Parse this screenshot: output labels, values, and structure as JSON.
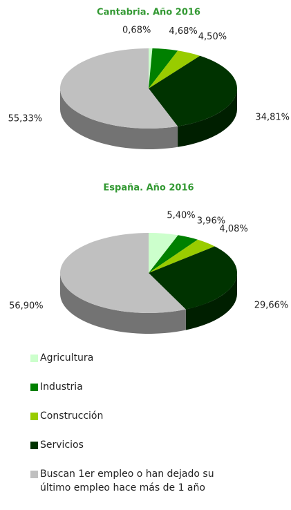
{
  "chart_data": [
    {
      "type": "pie",
      "title": "Cantabria. Año 2016",
      "categories": [
        "Agricultura",
        "Industria",
        "Construcción",
        "Servicios",
        "Buscan 1er empleo o han dejado su último empleo hace más de 1 año"
      ],
      "values": [
        0.68,
        4.68,
        4.5,
        34.81,
        55.33
      ],
      "value_labels": [
        "0,68%",
        "4,68%",
        "4,50%",
        "34,81%",
        "55,33%"
      ],
      "colors": [
        "#ccffcc",
        "#008000",
        "#99cc00",
        "#003300",
        "#c0c0c0"
      ]
    },
    {
      "type": "pie",
      "title": "España. Año 2016",
      "categories": [
        "Agricultura",
        "Industria",
        "Construcción",
        "Servicios",
        "Buscan 1er empleo o han dejado su último empleo hace más de 1 año"
      ],
      "values": [
        5.4,
        3.96,
        4.08,
        29.66,
        56.9
      ],
      "value_labels": [
        "5,40%",
        "3,96%",
        "4,08%",
        "29,66%",
        "56,90%"
      ],
      "colors": [
        "#ccffcc",
        "#008000",
        "#99cc00",
        "#003300",
        "#c0c0c0"
      ]
    }
  ]
}
